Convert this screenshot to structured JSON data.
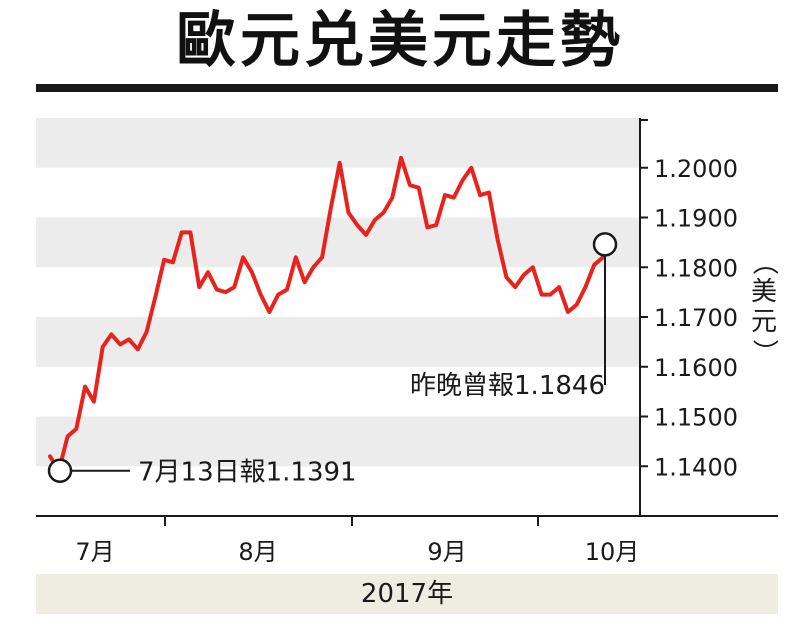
{
  "chart_data": {
    "type": "line",
    "title": "歐元兑美元走勢",
    "unit_label": "（美元）",
    "year_label": "2017年",
    "ylim": [
      1.13,
      1.21
    ],
    "yticks": [
      "1.2000",
      "1.1900",
      "1.1800",
      "1.1700",
      "1.1600",
      "1.1500",
      "1.1400"
    ],
    "ytick_values": [
      1.2,
      1.19,
      1.18,
      1.17,
      1.16,
      1.15,
      1.14
    ],
    "months": [
      {
        "label": "7月",
        "index": 0
      },
      {
        "label": "8月",
        "index": 1
      },
      {
        "label": "9月",
        "index": 2
      },
      {
        "label": "10月",
        "index": 3
      }
    ],
    "series": [
      {
        "color": "#e8231e",
        "values": [
          1.142,
          1.1391,
          1.146,
          1.1475,
          1.156,
          1.153,
          1.164,
          1.1665,
          1.1645,
          1.1655,
          1.1635,
          1.167,
          1.174,
          1.1815,
          1.181,
          1.187,
          1.187,
          1.176,
          1.179,
          1.1755,
          1.175,
          1.176,
          1.182,
          1.179,
          1.1745,
          1.171,
          1.1745,
          1.1755,
          1.182,
          1.177,
          1.18,
          1.182,
          1.192,
          1.201,
          1.191,
          1.1885,
          1.1865,
          1.1895,
          1.191,
          1.194,
          1.202,
          1.1965,
          1.196,
          1.188,
          1.1885,
          1.1945,
          1.194,
          1.1975,
          1.2,
          1.1945,
          1.195,
          1.1855,
          1.178,
          1.176,
          1.1785,
          1.18,
          1.1745,
          1.1745,
          1.176,
          1.171,
          1.1725,
          1.176,
          1.1805,
          1.182
        ]
      }
    ],
    "annotations": [
      {
        "label": "7月13日報1.1391",
        "value": 1.1391,
        "point": "start"
      },
      {
        "label": "昨晚曾報1.1846",
        "value": 1.1846,
        "point": "end"
      }
    ],
    "grid": "alternating horizontal bands",
    "legend": "none"
  }
}
